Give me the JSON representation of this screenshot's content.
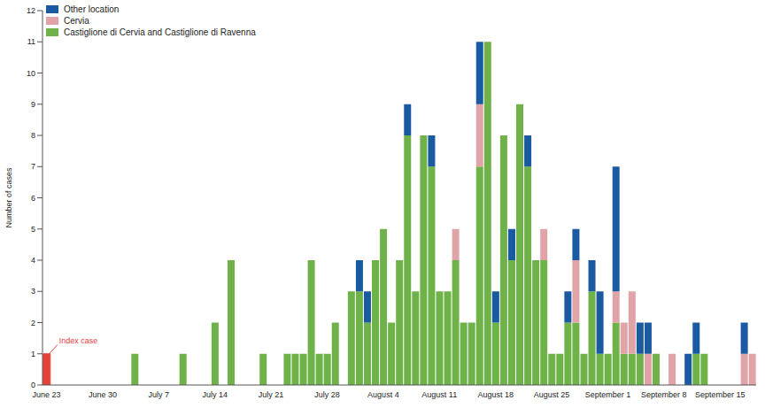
{
  "chart_data": {
    "type": "bar",
    "stacked": true,
    "legend": "top-left",
    "y_label": "Number of cases",
    "categories": [
      "June 23",
      null,
      null,
      null,
      null,
      null,
      null,
      "June 30",
      null,
      null,
      null,
      null,
      null,
      null,
      "July 7",
      null,
      null,
      null,
      null,
      null,
      null,
      "July 14",
      null,
      null,
      null,
      null,
      null,
      null,
      "July 21",
      null,
      null,
      null,
      null,
      null,
      null,
      "July 28",
      null,
      null,
      null,
      null,
      null,
      null,
      "August 4",
      null,
      null,
      null,
      null,
      null,
      null,
      "August 11",
      null,
      null,
      null,
      null,
      null,
      null,
      "August 18",
      null,
      null,
      null,
      null,
      null,
      null,
      "August 25",
      null,
      null,
      null,
      null,
      null,
      null,
      "September 1",
      null,
      null,
      null,
      null,
      null,
      null,
      "September 8",
      null,
      null,
      null,
      null,
      null,
      null,
      "September 15",
      null,
      null,
      null,
      null
    ],
    "series": [
      {
        "name": "Castiglione di Cervia and Castiglione di Ravenna",
        "color": "#70b24a",
        "values": [
          0,
          0,
          0,
          0,
          0,
          0,
          0,
          0,
          0,
          0,
          0,
          1,
          0,
          0,
          0,
          0,
          0,
          1,
          0,
          0,
          0,
          2,
          0,
          4,
          0,
          0,
          0,
          1,
          0,
          0,
          1,
          1,
          1,
          4,
          1,
          1,
          2,
          0,
          3,
          3,
          2,
          4,
          5,
          2,
          4,
          8,
          3,
          8,
          7,
          3,
          3,
          4,
          2,
          2,
          7,
          11,
          2,
          8,
          4,
          9,
          7,
          4,
          4,
          1,
          1,
          2,
          2,
          1,
          3,
          1,
          1,
          2,
          1,
          1,
          1,
          0,
          1,
          0,
          0,
          0,
          0,
          1,
          1,
          0,
          0,
          0,
          0,
          0,
          0
        ]
      },
      {
        "name": "Cervia",
        "color": "#e0a3a8",
        "values": [
          0,
          0,
          0,
          0,
          0,
          0,
          0,
          0,
          0,
          0,
          0,
          0,
          0,
          0,
          0,
          0,
          0,
          0,
          0,
          0,
          0,
          0,
          0,
          0,
          0,
          0,
          0,
          0,
          0,
          0,
          0,
          0,
          0,
          0,
          0,
          0,
          0,
          0,
          0,
          0,
          0,
          0,
          0,
          0,
          0,
          0,
          0,
          0,
          0,
          0,
          0,
          1,
          0,
          0,
          2,
          0,
          0,
          0,
          0,
          0,
          0,
          0,
          1,
          0,
          0,
          0,
          2,
          0,
          0,
          0,
          0,
          1,
          1,
          2,
          0,
          1,
          0,
          0,
          1,
          0,
          0,
          0,
          0,
          0,
          0,
          0,
          0,
          1,
          1
        ]
      },
      {
        "name": "Other location",
        "color": "#1a5aa0",
        "values": [
          0,
          0,
          0,
          0,
          0,
          0,
          0,
          0,
          0,
          0,
          0,
          0,
          0,
          0,
          0,
          0,
          0,
          0,
          0,
          0,
          0,
          0,
          0,
          0,
          0,
          0,
          0,
          0,
          0,
          0,
          0,
          0,
          0,
          0,
          0,
          0,
          0,
          0,
          0,
          1,
          1,
          0,
          0,
          0,
          0,
          1,
          0,
          0,
          1,
          0,
          0,
          0,
          0,
          0,
          2,
          0,
          1,
          0,
          1,
          0,
          1,
          0,
          0,
          0,
          0,
          1,
          1,
          0,
          1,
          2,
          0,
          4,
          0,
          0,
          1,
          1,
          0,
          0,
          0,
          0,
          1,
          1,
          0,
          0,
          0,
          0,
          0,
          1,
          0
        ]
      }
    ],
    "annotations": [
      {
        "text": "Index case",
        "x": "June 23",
        "value": 1,
        "color": "#e8403a"
      }
    ],
    "ylim": [
      0,
      12
    ],
    "yticks": [
      0,
      1,
      2,
      3,
      4,
      5,
      6,
      7,
      8,
      9,
      10,
      11,
      12
    ],
    "grid": false
  }
}
